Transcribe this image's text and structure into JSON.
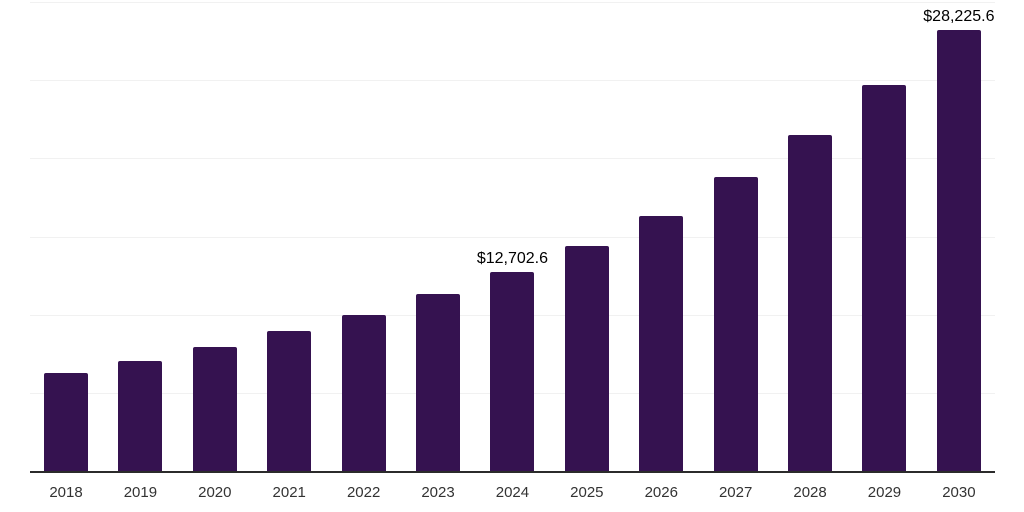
{
  "chart_data": {
    "type": "bar",
    "title": "",
    "xlabel": "",
    "ylabel": "",
    "categories": [
      "2018",
      "2019",
      "2020",
      "2021",
      "2022",
      "2023",
      "2024",
      "2025",
      "2026",
      "2027",
      "2028",
      "2029",
      "2030"
    ],
    "values": [
      6300,
      7050,
      7950,
      8950,
      10000,
      11300,
      12702.6,
      14400,
      16300,
      18800,
      21500,
      24700,
      28225.6
    ],
    "data_labels": [
      "",
      "",
      "",
      "",
      "",
      "",
      "$12,702.6",
      "",
      "",
      "",
      "",
      "",
      "$28,225.6"
    ],
    "ylim": [
      0,
      30000
    ],
    "gridline_values": [
      30000,
      25000,
      20000,
      15000,
      10000,
      5000
    ],
    "grid": "horizontal-only",
    "legend_position": "none",
    "bar_color": "#351250",
    "axis_line_color": "#2b2b2b",
    "gridline_color": "#f1f1f1",
    "x_tick_label_color": "#333333",
    "data_label_color": "#000000",
    "background_color": "#ffffff"
  }
}
